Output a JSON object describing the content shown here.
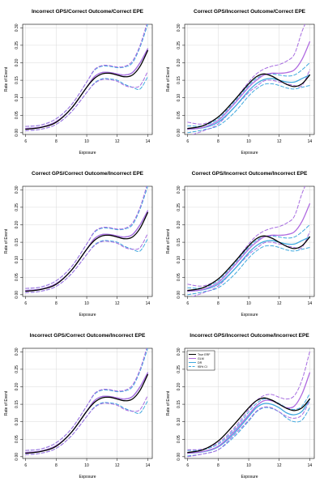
{
  "figure": {
    "x_axis_label": "Exposure",
    "y_axis_label": "Rate of Event",
    "x_ticks": [
      "6",
      "8",
      "10",
      "12",
      "14"
    ],
    "y_ticks": [
      "0.00",
      "0.05",
      "0.10",
      "0.15",
      "0.20",
      "0.25",
      "0.30"
    ],
    "legend": [
      "True ERF",
      "GLM",
      "DR",
      "95% CI"
    ]
  },
  "colors": {
    "true_erf": "#000000",
    "glm": "#b06be0",
    "dr": "#3fa8de",
    "ci_glm": "#a66be0",
    "ci_dr": "#3fa8de",
    "grid": "#d9d9d9"
  },
  "chart_data": [
    {
      "type": "line",
      "title": "Incorrect GPS/Correct Outcome/Correct EPE",
      "xlabel": "Exposure",
      "ylabel": "Rate of Event",
      "xlim": [
        5.8,
        14.3
      ],
      "ylim": [
        -0.005,
        0.31
      ],
      "x": [
        6,
        7,
        8,
        9,
        10,
        10.5,
        11,
        11.5,
        12,
        12.5,
        13,
        13.5,
        14
      ],
      "series": [
        {
          "name": "True ERF",
          "values": [
            0.01,
            0.015,
            0.03,
            0.07,
            0.13,
            0.155,
            0.168,
            0.17,
            0.165,
            0.16,
            0.165,
            0.19,
            0.235
          ]
        },
        {
          "name": "GLM",
          "values": [
            0.012,
            0.016,
            0.032,
            0.07,
            0.13,
            0.16,
            0.172,
            0.172,
            0.168,
            0.165,
            0.172,
            0.2,
            0.24
          ]
        },
        {
          "name": "DR",
          "values": [
            0.012,
            0.016,
            0.032,
            0.07,
            0.13,
            0.16,
            0.172,
            0.172,
            0.168,
            0.165,
            0.172,
            0.2,
            0.24
          ]
        },
        {
          "name": "GLM 95% CI upper",
          "values": [
            0.018,
            0.022,
            0.04,
            0.08,
            0.145,
            0.18,
            0.192,
            0.192,
            0.188,
            0.19,
            0.205,
            0.25,
            0.32
          ]
        },
        {
          "name": "GLM 95% CI lower",
          "values": [
            0.006,
            0.01,
            0.024,
            0.06,
            0.115,
            0.14,
            0.152,
            0.152,
            0.147,
            0.135,
            0.13,
            0.135,
            0.175
          ]
        },
        {
          "name": "DR 95% CI upper",
          "values": [
            0.018,
            0.022,
            0.04,
            0.08,
            0.145,
            0.178,
            0.19,
            0.19,
            0.186,
            0.188,
            0.2,
            0.245,
            0.31
          ]
        },
        {
          "name": "DR 95% CI lower",
          "values": [
            0.006,
            0.01,
            0.024,
            0.06,
            0.115,
            0.142,
            0.154,
            0.154,
            0.15,
            0.138,
            0.13,
            0.125,
            0.16
          ]
        }
      ]
    },
    {
      "type": "line",
      "title": "Correct GPS/Incorrect Outcome/Correct EPE",
      "xlabel": "Exposure",
      "ylabel": "Rate of Event",
      "xlim": [
        5.8,
        14.3
      ],
      "ylim": [
        -0.005,
        0.31
      ],
      "x": [
        6,
        7,
        8,
        9,
        10,
        10.5,
        11,
        11.5,
        12,
        12.5,
        13,
        13.5,
        14
      ],
      "series": [
        {
          "name": "True ERF",
          "values": [
            0.012,
            0.02,
            0.045,
            0.09,
            0.14,
            0.16,
            0.168,
            0.162,
            0.15,
            0.138,
            0.132,
            0.14,
            0.165
          ]
        },
        {
          "name": "GLM",
          "values": [
            0.01,
            0.015,
            0.035,
            0.08,
            0.13,
            0.15,
            0.165,
            0.17,
            0.17,
            0.172,
            0.18,
            0.21,
            0.26
          ]
        },
        {
          "name": "DR",
          "values": [
            0.01,
            0.014,
            0.03,
            0.07,
            0.12,
            0.14,
            0.152,
            0.155,
            0.15,
            0.145,
            0.145,
            0.155,
            0.165
          ]
        },
        {
          "name": "GLM 95% CI upper",
          "values": [
            0.03,
            0.025,
            0.045,
            0.09,
            0.145,
            0.168,
            0.182,
            0.19,
            0.195,
            0.205,
            0.225,
            0.29,
            0.34
          ]
        },
        {
          "name": "GLM 95% CI lower",
          "values": [
            -0.01,
            0.005,
            0.025,
            0.07,
            0.115,
            0.132,
            0.148,
            0.15,
            0.145,
            0.14,
            0.135,
            0.135,
            0.18
          ]
        },
        {
          "name": "DR 95% CI upper",
          "values": [
            0.02,
            0.02,
            0.04,
            0.085,
            0.135,
            0.155,
            0.165,
            0.168,
            0.165,
            0.162,
            0.165,
            0.18,
            0.2
          ]
        },
        {
          "name": "DR 95% CI lower",
          "values": [
            0.0,
            0.008,
            0.02,
            0.055,
            0.105,
            0.125,
            0.138,
            0.14,
            0.135,
            0.128,
            0.125,
            0.13,
            0.135
          ]
        }
      ]
    },
    {
      "type": "line",
      "title": "Correct GPS/Correct Outcome/Incorrect EPE",
      "xlabel": "Exposure",
      "ylabel": "Rate of Event",
      "xlim": [
        5.8,
        14.3
      ],
      "ylim": [
        -0.005,
        0.31
      ],
      "x": [
        6,
        7,
        8,
        9,
        10,
        10.5,
        11,
        11.5,
        12,
        12.5,
        13,
        13.5,
        14
      ],
      "series": [
        {
          "name": "True ERF",
          "values": [
            0.01,
            0.015,
            0.03,
            0.07,
            0.13,
            0.155,
            0.168,
            0.17,
            0.165,
            0.16,
            0.165,
            0.19,
            0.235
          ]
        },
        {
          "name": "GLM",
          "values": [
            0.012,
            0.016,
            0.032,
            0.07,
            0.13,
            0.16,
            0.172,
            0.172,
            0.168,
            0.165,
            0.172,
            0.2,
            0.24
          ]
        },
        {
          "name": "DR",
          "values": [
            0.012,
            0.016,
            0.032,
            0.07,
            0.13,
            0.16,
            0.172,
            0.172,
            0.168,
            0.165,
            0.172,
            0.2,
            0.24
          ]
        },
        {
          "name": "GLM 95% CI upper",
          "values": [
            0.018,
            0.022,
            0.04,
            0.08,
            0.145,
            0.18,
            0.192,
            0.192,
            0.188,
            0.19,
            0.205,
            0.25,
            0.32
          ]
        },
        {
          "name": "GLM 95% CI lower",
          "values": [
            0.006,
            0.01,
            0.024,
            0.06,
            0.115,
            0.14,
            0.152,
            0.152,
            0.147,
            0.135,
            0.13,
            0.135,
            0.175
          ]
        },
        {
          "name": "DR 95% CI upper",
          "values": [
            0.018,
            0.022,
            0.04,
            0.08,
            0.145,
            0.178,
            0.19,
            0.19,
            0.186,
            0.188,
            0.2,
            0.245,
            0.31
          ]
        },
        {
          "name": "DR 95% CI lower",
          "values": [
            0.006,
            0.01,
            0.024,
            0.06,
            0.115,
            0.142,
            0.154,
            0.154,
            0.15,
            0.138,
            0.13,
            0.125,
            0.16
          ]
        }
      ]
    },
    {
      "type": "line",
      "title": "Correct GPS/Incorrect Outcome/Incorrect EPE",
      "xlabel": "Exposure",
      "ylabel": "Rate of Event",
      "xlim": [
        5.8,
        14.3
      ],
      "ylim": [
        -0.005,
        0.31
      ],
      "x": [
        6,
        7,
        8,
        9,
        10,
        10.5,
        11,
        11.5,
        12,
        12.5,
        13,
        13.5,
        14
      ],
      "series": [
        {
          "name": "True ERF",
          "values": [
            0.012,
            0.02,
            0.045,
            0.09,
            0.14,
            0.16,
            0.168,
            0.162,
            0.15,
            0.138,
            0.132,
            0.14,
            0.165
          ]
        },
        {
          "name": "GLM",
          "values": [
            0.01,
            0.015,
            0.035,
            0.08,
            0.13,
            0.15,
            0.165,
            0.17,
            0.17,
            0.172,
            0.18,
            0.21,
            0.26
          ]
        },
        {
          "name": "DR",
          "values": [
            0.01,
            0.014,
            0.03,
            0.07,
            0.12,
            0.14,
            0.152,
            0.155,
            0.15,
            0.145,
            0.145,
            0.155,
            0.165
          ]
        },
        {
          "name": "GLM 95% CI upper",
          "values": [
            0.03,
            0.025,
            0.045,
            0.09,
            0.145,
            0.168,
            0.182,
            0.19,
            0.195,
            0.205,
            0.225,
            0.29,
            0.34
          ]
        },
        {
          "name": "GLM 95% CI lower",
          "values": [
            -0.01,
            0.005,
            0.025,
            0.07,
            0.115,
            0.132,
            0.148,
            0.15,
            0.145,
            0.14,
            0.135,
            0.135,
            0.18
          ]
        },
        {
          "name": "DR 95% CI upper",
          "values": [
            0.02,
            0.02,
            0.04,
            0.085,
            0.135,
            0.155,
            0.165,
            0.168,
            0.165,
            0.162,
            0.165,
            0.18,
            0.2
          ]
        },
        {
          "name": "DR 95% CI lower",
          "values": [
            0.0,
            0.008,
            0.02,
            0.055,
            0.105,
            0.125,
            0.138,
            0.14,
            0.135,
            0.128,
            0.125,
            0.13,
            0.135
          ]
        }
      ]
    },
    {
      "type": "line",
      "title": "Incorrect GPS/Correct Outcome/Incorrect EPE",
      "xlabel": "Exposure",
      "ylabel": "Rate of Event",
      "xlim": [
        5.8,
        14.3
      ],
      "ylim": [
        -0.005,
        0.31
      ],
      "x": [
        6,
        7,
        8,
        9,
        10,
        10.5,
        11,
        11.5,
        12,
        12.5,
        13,
        13.5,
        14
      ],
      "series": [
        {
          "name": "True ERF",
          "values": [
            0.01,
            0.015,
            0.03,
            0.07,
            0.13,
            0.155,
            0.168,
            0.17,
            0.165,
            0.16,
            0.165,
            0.19,
            0.235
          ]
        },
        {
          "name": "GLM",
          "values": [
            0.012,
            0.016,
            0.032,
            0.07,
            0.13,
            0.16,
            0.172,
            0.172,
            0.168,
            0.165,
            0.172,
            0.2,
            0.24
          ]
        },
        {
          "name": "DR",
          "values": [
            0.012,
            0.016,
            0.032,
            0.07,
            0.13,
            0.16,
            0.172,
            0.172,
            0.168,
            0.165,
            0.172,
            0.2,
            0.24
          ]
        },
        {
          "name": "GLM 95% CI upper",
          "values": [
            0.018,
            0.022,
            0.04,
            0.08,
            0.145,
            0.18,
            0.192,
            0.192,
            0.188,
            0.19,
            0.205,
            0.25,
            0.32
          ]
        },
        {
          "name": "GLM 95% CI lower",
          "values": [
            0.006,
            0.01,
            0.024,
            0.06,
            0.115,
            0.14,
            0.152,
            0.152,
            0.147,
            0.135,
            0.13,
            0.135,
            0.175
          ]
        },
        {
          "name": "DR 95% CI upper",
          "values": [
            0.018,
            0.022,
            0.04,
            0.08,
            0.145,
            0.178,
            0.19,
            0.19,
            0.186,
            0.188,
            0.2,
            0.245,
            0.31
          ]
        },
        {
          "name": "DR 95% CI lower",
          "values": [
            0.006,
            0.01,
            0.024,
            0.06,
            0.115,
            0.142,
            0.154,
            0.154,
            0.15,
            0.138,
            0.13,
            0.125,
            0.16
          ]
        }
      ]
    },
    {
      "type": "line",
      "title": "Incorrect GPS/Incorrect Outcome/Incorrect EPE",
      "xlabel": "Exposure",
      "ylabel": "Rate of Event",
      "xlim": [
        5.8,
        14.3
      ],
      "ylim": [
        -0.005,
        0.31
      ],
      "x": [
        6,
        7,
        8,
        9,
        10,
        10.5,
        11,
        11.5,
        12,
        12.5,
        13,
        13.5,
        14
      ],
      "legend": "top-left",
      "series": [
        {
          "name": "True ERF",
          "values": [
            0.012,
            0.02,
            0.045,
            0.09,
            0.14,
            0.16,
            0.168,
            0.162,
            0.15,
            0.138,
            0.132,
            0.14,
            0.165
          ]
        },
        {
          "name": "GLM",
          "values": [
            0.01,
            0.015,
            0.03,
            0.07,
            0.12,
            0.145,
            0.16,
            0.16,
            0.15,
            0.14,
            0.145,
            0.18,
            0.24
          ]
        },
        {
          "name": "DR",
          "values": [
            0.01,
            0.014,
            0.028,
            0.065,
            0.115,
            0.14,
            0.152,
            0.15,
            0.14,
            0.125,
            0.12,
            0.13,
            0.165
          ]
        },
        {
          "name": "GLM 95% CI upper",
          "values": [
            0.02,
            0.022,
            0.04,
            0.08,
            0.135,
            0.16,
            0.175,
            0.178,
            0.17,
            0.165,
            0.175,
            0.22,
            0.3
          ]
        },
        {
          "name": "GLM 95% CI lower",
          "values": [
            0.0,
            0.008,
            0.02,
            0.06,
            0.105,
            0.13,
            0.142,
            0.14,
            0.128,
            0.115,
            0.11,
            0.12,
            0.16
          ]
        },
        {
          "name": "DR 95% CI upper",
          "values": [
            0.018,
            0.02,
            0.036,
            0.075,
            0.128,
            0.152,
            0.165,
            0.162,
            0.152,
            0.14,
            0.135,
            0.145,
            0.18
          ]
        },
        {
          "name": "DR 95% CI lower",
          "values": [
            0.002,
            0.008,
            0.02,
            0.055,
            0.102,
            0.128,
            0.14,
            0.138,
            0.128,
            0.11,
            0.1,
            0.105,
            0.14
          ]
        }
      ]
    }
  ]
}
